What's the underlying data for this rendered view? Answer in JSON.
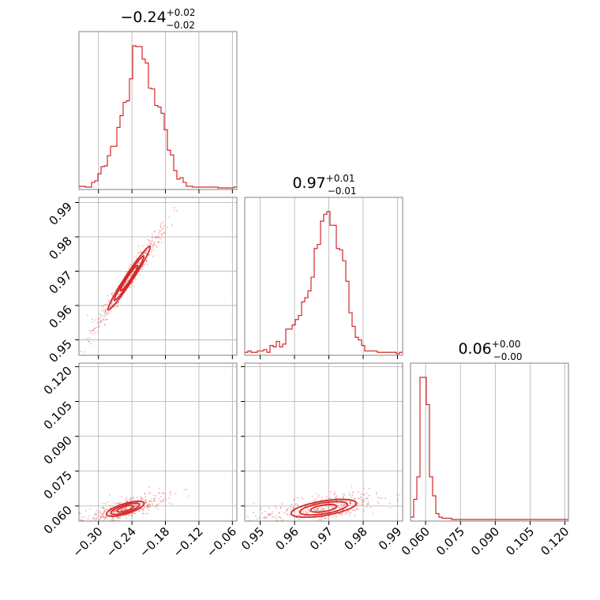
{
  "chart_data": {
    "type": "corner",
    "color": "#d62728",
    "grid": true,
    "parameters": [
      {
        "median": "0.24",
        "median_sign": "−",
        "err_plus": "+0.02",
        "err_minus": "−0.02",
        "range": [
          -0.335,
          -0.052
        ],
        "ticks": [
          -0.3,
          -0.24,
          -0.18,
          -0.12,
          -0.06
        ],
        "tick_labels": [
          "−0.30",
          "−0.24",
          "−0.18",
          "−0.12",
          "−0.06"
        ]
      },
      {
        "median": "0.97",
        "median_sign": "",
        "err_plus": "+0.01",
        "err_minus": "−0.01",
        "range": [
          0.9455,
          0.9915
        ],
        "ticks": [
          0.95,
          0.96,
          0.97,
          0.98,
          0.99
        ],
        "tick_labels": [
          "0.95",
          "0.96",
          "0.97",
          "0.98",
          "0.99"
        ]
      },
      {
        "median": "0.06",
        "median_sign": "",
        "err_plus": "+0.00",
        "err_minus": "−0.00",
        "range": [
          0.0535,
          0.1215
        ],
        "ticks": [
          0.06,
          0.075,
          0.09,
          0.105,
          0.12
        ],
        "tick_labels": [
          "0.060",
          "0.075",
          "0.090",
          "0.105",
          "0.120"
        ]
      }
    ],
    "histograms": [
      {
        "param": 0,
        "bin_start": -0.335,
        "bin_width": 0.00566,
        "counts": [
          2,
          2,
          1,
          1,
          7,
          9,
          18,
          27,
          28,
          41,
          53,
          53,
          77,
          92,
          109,
          111,
          139,
          181,
          180,
          180,
          164,
          159,
          127,
          126,
          105,
          103,
          95,
          74,
          48,
          42,
          22,
          11,
          13,
          7,
          2,
          2,
          1,
          1,
          1,
          1,
          1,
          1,
          1,
          1,
          0,
          0,
          0,
          0,
          0,
          1
        ]
      },
      {
        "param": 1,
        "bin_start": 0.9455,
        "bin_width": 0.00092,
        "counts": [
          1,
          2,
          1,
          1,
          2,
          2,
          3,
          1,
          6,
          5,
          9,
          5,
          7,
          18,
          18,
          21,
          25,
          28,
          38,
          41,
          46,
          56,
          77,
          80,
          97,
          102,
          104,
          94,
          94,
          77,
          76,
          68,
          53,
          30,
          20,
          12,
          10,
          6,
          2,
          2,
          2,
          2,
          1,
          1,
          1,
          1,
          1,
          1,
          0,
          1
        ]
      },
      {
        "param": 2,
        "bin_start": 0.0535,
        "bin_width": 0.00136,
        "counts": [
          2,
          17,
          36,
          120,
          120,
          97,
          36,
          20,
          5,
          2,
          1,
          1,
          1,
          0,
          0,
          0,
          0,
          0,
          0,
          0,
          0,
          0,
          0,
          0,
          0,
          0,
          0,
          0,
          0,
          0,
          0,
          0,
          0,
          0,
          0,
          0,
          0,
          0,
          0,
          0,
          0,
          0,
          0,
          0,
          0,
          0,
          0,
          0,
          0,
          0
        ]
      }
    ],
    "scatter_2d": [
      {
        "x_param": 0,
        "y_param": 1,
        "center": [
          -0.245,
          0.968
        ],
        "axis_end_a": [
          -0.32,
          0.949
        ],
        "axis_end_b": [
          -0.17,
          0.986
        ],
        "contours": [
          {
            "half_len": 0.5,
            "half_width": 0.05
          },
          {
            "half_len": 0.35,
            "half_width": 0.035
          },
          {
            "half_len": 0.2,
            "half_width": 0.025
          }
        ]
      },
      {
        "x_param": 0,
        "y_param": 2,
        "center": [
          -0.252,
          0.0588
        ],
        "axis_end_a": [
          -0.325,
          0.0548
        ],
        "axis_end_b": [
          -0.165,
          0.0665
        ],
        "contours": [
          {
            "half_len": 0.42,
            "half_width": 0.11
          },
          {
            "half_len": 0.32,
            "half_width": 0.08
          },
          {
            "half_len": 0.18,
            "half_width": 0.05
          }
        ]
      },
      {
        "x_param": 1,
        "y_param": 2,
        "center": [
          0.9685,
          0.059
        ],
        "axis_end_a": [
          0.946,
          0.055
        ],
        "axis_end_b": [
          0.988,
          0.065
        ],
        "contours": [
          {
            "half_len": 0.45,
            "half_width": 0.1
          },
          {
            "half_len": 0.33,
            "half_width": 0.075
          },
          {
            "half_len": 0.18,
            "half_width": 0.045
          }
        ]
      }
    ]
  }
}
